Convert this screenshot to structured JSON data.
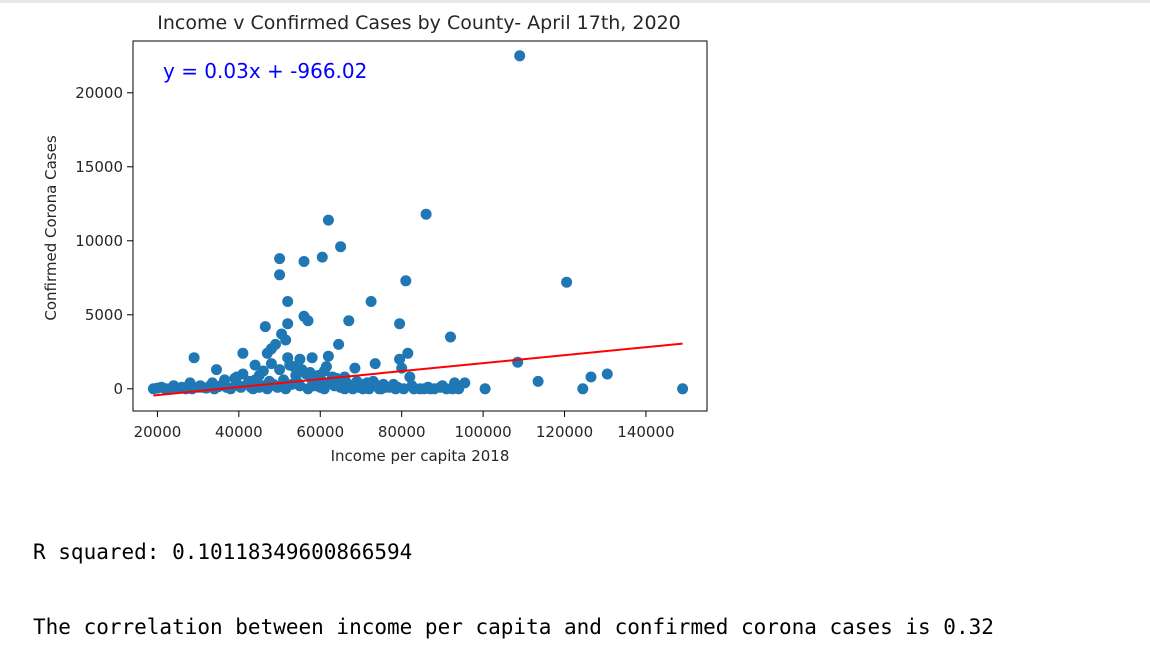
{
  "chart_data": {
    "type": "scatter",
    "title": "Income v Confirmed Cases by County- April 17th, 2020",
    "xlabel": "Income per capita 2018",
    "ylabel": "Confirmed Corona Cases",
    "xlim": [
      14000,
      155000
    ],
    "ylim": [
      -1500,
      23500
    ],
    "xticks": [
      20000,
      40000,
      60000,
      80000,
      100000,
      120000,
      140000
    ],
    "yticks": [
      0,
      5000,
      10000,
      15000,
      20000
    ],
    "grid": false,
    "point_color": "#1f77b4",
    "line_color": "#ff0000",
    "equation_color": "#0000ff",
    "regression": {
      "label": "y = 0.03x + -966.02",
      "slope": 0.027,
      "intercept": -966.02,
      "x_range": [
        19000,
        149000
      ]
    },
    "points": [
      [
        109000,
        22500
      ],
      [
        86000,
        11800
      ],
      [
        62000,
        11400
      ],
      [
        65000,
        9600
      ],
      [
        50000,
        8800
      ],
      [
        60500,
        8900
      ],
      [
        56000,
        8600
      ],
      [
        50000,
        7700
      ],
      [
        81000,
        7300
      ],
      [
        120500,
        7200
      ],
      [
        52000,
        5900
      ],
      [
        72500,
        5900
      ],
      [
        56000,
        4900
      ],
      [
        57000,
        4600
      ],
      [
        67000,
        4600
      ],
      [
        52000,
        4400
      ],
      [
        46500,
        4200
      ],
      [
        79500,
        4400
      ],
      [
        50500,
        3700
      ],
      [
        92000,
        3500
      ],
      [
        51500,
        3300
      ],
      [
        49000,
        3000
      ],
      [
        64500,
        3000
      ],
      [
        48000,
        2700
      ],
      [
        47000,
        2400
      ],
      [
        41000,
        2400
      ],
      [
        62000,
        2200
      ],
      [
        29000,
        2100
      ],
      [
        52000,
        2100
      ],
      [
        55000,
        2000
      ],
      [
        58000,
        2100
      ],
      [
        81500,
        2400
      ],
      [
        79500,
        2000
      ],
      [
        108500,
        1800
      ],
      [
        68500,
        1400
      ],
      [
        73500,
        1700
      ],
      [
        130500,
        1000
      ],
      [
        80000,
        1400
      ],
      [
        44000,
        1600
      ],
      [
        34500,
        1300
      ],
      [
        126500,
        800
      ],
      [
        113500,
        500
      ],
      [
        82000,
        800
      ],
      [
        93000,
        400
      ],
      [
        95500,
        400
      ],
      [
        124500,
        0
      ],
      [
        149000,
        0
      ],
      [
        100500,
        0
      ],
      [
        84500,
        0
      ],
      [
        87000,
        0
      ],
      [
        90000,
        200
      ],
      [
        77000,
        100
      ],
      [
        69000,
        500
      ],
      [
        66000,
        800
      ],
      [
        61000,
        1200
      ],
      [
        58000,
        600
      ],
      [
        54000,
        900
      ],
      [
        45000,
        900
      ],
      [
        39000,
        700
      ],
      [
        36000,
        300
      ],
      [
        33000,
        200
      ],
      [
        31000,
        100
      ],
      [
        28000,
        400
      ],
      [
        26000,
        100
      ],
      [
        24000,
        200
      ],
      [
        22000,
        0
      ],
      [
        20000,
        50
      ],
      [
        19000,
        0
      ],
      [
        21000,
        100
      ],
      [
        23000,
        0
      ],
      [
        25000,
        50
      ],
      [
        27000,
        0
      ],
      [
        30000,
        100
      ],
      [
        32000,
        50
      ],
      [
        34000,
        0
      ],
      [
        35000,
        150
      ],
      [
        37000,
        100
      ],
      [
        38000,
        50
      ],
      [
        40000,
        200
      ],
      [
        42000,
        300
      ],
      [
        43000,
        100
      ],
      [
        46000,
        200
      ],
      [
        47500,
        500
      ],
      [
        48500,
        300
      ],
      [
        49500,
        100
      ],
      [
        51000,
        600
      ],
      [
        53000,
        300
      ],
      [
        55000,
        200
      ],
      [
        56500,
        1000
      ],
      [
        59000,
        300
      ],
      [
        60000,
        100
      ],
      [
        62500,
        400
      ],
      [
        63500,
        200
      ],
      [
        65000,
        100
      ],
      [
        67000,
        200
      ],
      [
        68000,
        0
      ],
      [
        70000,
        300
      ],
      [
        71000,
        100
      ],
      [
        72000,
        0
      ],
      [
        74000,
        200
      ],
      [
        75000,
        0
      ],
      [
        76000,
        100
      ],
      [
        78000,
        300
      ],
      [
        80500,
        0
      ],
      [
        83000,
        0
      ],
      [
        86500,
        100
      ],
      [
        88000,
        0
      ],
      [
        91000,
        0
      ],
      [
        94000,
        0
      ],
      [
        41000,
        1000
      ],
      [
        44000,
        600
      ],
      [
        50000,
        1300
      ],
      [
        53500,
        1500
      ],
      [
        57500,
        1100
      ],
      [
        63000,
        800
      ],
      [
        66500,
        400
      ],
      [
        69500,
        100
      ],
      [
        73000,
        500
      ],
      [
        36500,
        600
      ],
      [
        39500,
        800
      ],
      [
        42500,
        500
      ],
      [
        46000,
        1200
      ],
      [
        48000,
        1700
      ],
      [
        52500,
        1600
      ],
      [
        55500,
        1300
      ],
      [
        59500,
        900
      ],
      [
        61500,
        1500
      ],
      [
        64000,
        700
      ],
      [
        28500,
        0
      ],
      [
        30500,
        200
      ],
      [
        33500,
        400
      ],
      [
        45000,
        100
      ],
      [
        51500,
        0
      ],
      [
        54500,
        400
      ],
      [
        58500,
        200
      ],
      [
        60500,
        500
      ],
      [
        64500,
        300
      ],
      [
        68500,
        200
      ],
      [
        71500,
        400
      ],
      [
        75500,
        300
      ],
      [
        79000,
        100
      ],
      [
        82500,
        200
      ],
      [
        85500,
        0
      ],
      [
        89500,
        100
      ],
      [
        92500,
        0
      ],
      [
        38000,
        0
      ],
      [
        40500,
        100
      ],
      [
        43500,
        0
      ],
      [
        47000,
        0
      ],
      [
        49000,
        200
      ],
      [
        57000,
        0
      ],
      [
        61000,
        0
      ],
      [
        66000,
        0
      ],
      [
        70500,
        0
      ],
      [
        74500,
        0
      ],
      [
        78500,
        0
      ]
    ]
  },
  "output_lines": {
    "line1": "R squared: 0.10118349600866594",
    "line2": "The correlation between income per capita and confirmed corona cases is 0.32"
  }
}
